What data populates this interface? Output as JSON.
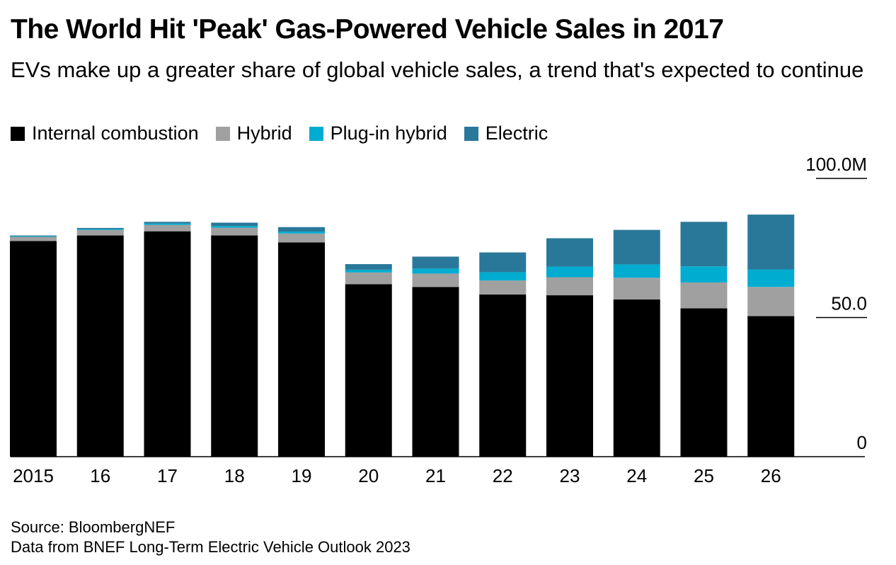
{
  "title": "The World Hit 'Peak' Gas-Powered Vehicle Sales in 2017",
  "subtitle": "EVs make up a greater share of global vehicle sales, a trend that's expected to continue",
  "legend": [
    {
      "label": "Internal combustion",
      "color": "#000000"
    },
    {
      "label": "Hybrid",
      "color": "#a0a0a0"
    },
    {
      "label": "Plug-in hybrid",
      "color": "#00acd0"
    },
    {
      "label": "Electric",
      "color": "#2a7899"
    }
  ],
  "source": {
    "line1": "Source: BloombergNEF",
    "line2": "Data from BNEF Long-Term Electric Vehicle Outlook 2023"
  },
  "chart_data": {
    "type": "bar",
    "stacked": true,
    "categories": [
      "2015",
      "16",
      "17",
      "18",
      "19",
      "20",
      "21",
      "22",
      "23",
      "24",
      "25",
      "26"
    ],
    "series": [
      {
        "name": "Internal combustion",
        "color": "#000000",
        "values": [
          77.5,
          79.5,
          81.0,
          79.5,
          77.0,
          62.0,
          61.0,
          58.3,
          58.0,
          56.5,
          53.3,
          50.5
        ]
      },
      {
        "name": "Hybrid",
        "color": "#a0a0a0",
        "values": [
          1.5,
          2.0,
          2.3,
          2.8,
          3.2,
          4.2,
          4.8,
          5.0,
          6.5,
          7.8,
          9.3,
          10.5
        ]
      },
      {
        "name": "Plug-in hybrid",
        "color": "#00acd0",
        "values": [
          0.2,
          0.3,
          0.5,
          0.6,
          0.7,
          1.0,
          1.8,
          3.0,
          3.8,
          4.8,
          5.8,
          6.3
        ]
      },
      {
        "name": "Electric",
        "color": "#2a7899",
        "values": [
          0.3,
          0.4,
          0.6,
          1.2,
          1.6,
          2.0,
          4.3,
          7.1,
          10.2,
          12.4,
          16.0,
          19.7
        ]
      }
    ],
    "yaxis": {
      "ticks": [
        "0",
        "50.0",
        "100.0M"
      ],
      "tick_values": [
        0,
        50,
        100
      ],
      "ylim": [
        0,
        100
      ],
      "position": "right"
    },
    "xlabel": "",
    "ylabel": "",
    "grid": false,
    "legend_position": "top-left"
  }
}
